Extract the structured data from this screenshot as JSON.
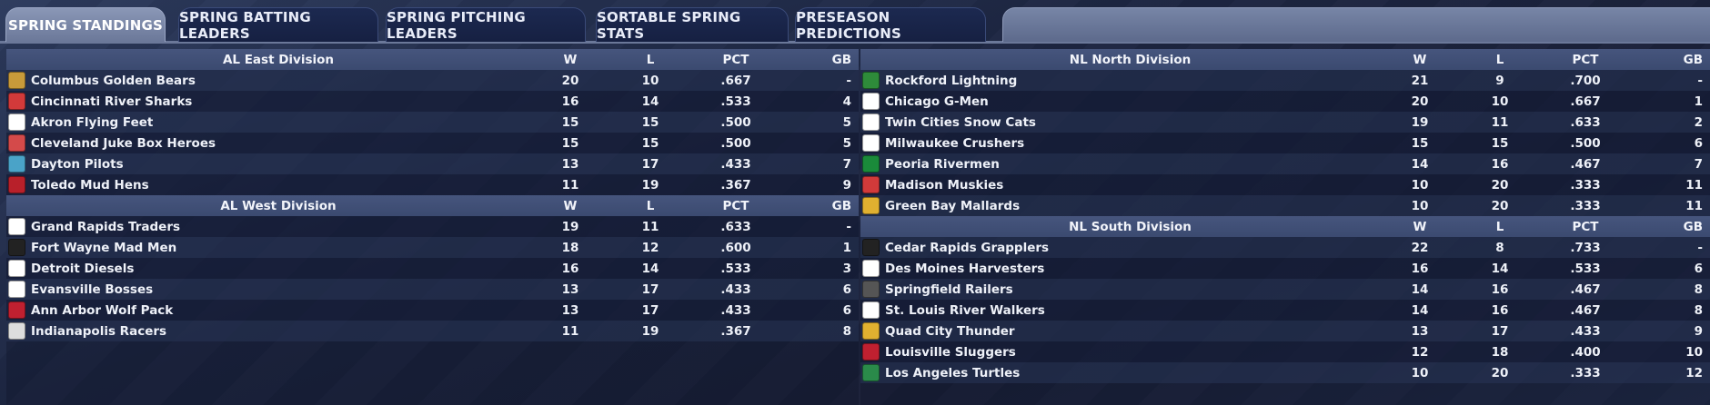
{
  "tabs": [
    {
      "label": "SPRING STANDINGS",
      "active": true
    },
    {
      "label": "SPRING BATTING LEADERS",
      "active": false
    },
    {
      "label": "SPRING PITCHING LEADERS",
      "active": false
    },
    {
      "label": "SORTABLE SPRING STATS",
      "active": false
    },
    {
      "label": "PRESEASON PREDICTIONS",
      "active": false
    }
  ],
  "columns": {
    "w": "W",
    "l": "L",
    "pct": "PCT",
    "gb": "GB"
  },
  "divisions": {
    "al_east": {
      "name": "AL East Division",
      "teams": [
        {
          "name": "Columbus Golden Bears",
          "w": "20",
          "l": "10",
          "pct": ".667",
          "gb": "-",
          "logo": "bear-logo-icon",
          "color": "#c89a3a"
        },
        {
          "name": "Cincinnati River Sharks",
          "w": "16",
          "l": "14",
          "pct": ".533",
          "gb": "4",
          "logo": "shark-logo-icon",
          "color": "#d23a3a"
        },
        {
          "name": "Akron  Flying Feet",
          "w": "15",
          "l": "15",
          "pct": ".500",
          "gb": "5",
          "logo": "feet-logo-icon",
          "color": "#ffffff"
        },
        {
          "name": "Cleveland Juke Box Heroes",
          "w": "15",
          "l": "15",
          "pct": ".500",
          "gb": "5",
          "logo": "jukebox-logo-icon",
          "color": "#d44a4a"
        },
        {
          "name": "Dayton Pilots",
          "w": "13",
          "l": "17",
          "pct": ".433",
          "gb": "7",
          "logo": "pilot-logo-icon",
          "color": "#4aa3c8"
        },
        {
          "name": "Toledo  Mud Hens",
          "w": "11",
          "l": "19",
          "pct": ".367",
          "gb": "9",
          "logo": "mudhen-logo-icon",
          "color": "#b8202a"
        }
      ]
    },
    "al_west": {
      "name": "AL West Division",
      "teams": [
        {
          "name": "Grand Rapids Traders",
          "w": "19",
          "l": "11",
          "pct": ".633",
          "gb": "-",
          "logo": "traders-logo-icon",
          "color": "#ffffff"
        },
        {
          "name": "Fort Wayne Mad Men",
          "w": "18",
          "l": "12",
          "pct": ".600",
          "gb": "1",
          "logo": "madmen-logo-icon",
          "color": "#222222"
        },
        {
          "name": "Detroit Diesels",
          "w": "16",
          "l": "14",
          "pct": ".533",
          "gb": "3",
          "logo": "diesels-logo-icon",
          "color": "#ffffff"
        },
        {
          "name": "Evansville Bosses",
          "w": "13",
          "l": "17",
          "pct": ".433",
          "gb": "6",
          "logo": "bosses-logo-icon",
          "color": "#ffffff"
        },
        {
          "name": "Ann Arbor Wolf Pack",
          "w": "13",
          "l": "17",
          "pct": ".433",
          "gb": "6",
          "logo": "wolfpack-logo-icon",
          "color": "#c02030"
        },
        {
          "name": "Indianapolis Racers",
          "w": "11",
          "l": "19",
          "pct": ".367",
          "gb": "8",
          "logo": "racers-logo-icon",
          "color": "#dddddd"
        }
      ]
    },
    "nl_north": {
      "name": "NL North Division",
      "teams": [
        {
          "name": "Rockford Lightning",
          "w": "21",
          "l": "9",
          "pct": ".700",
          "gb": "-",
          "logo": "lightning-logo-icon",
          "color": "#2e8b3a"
        },
        {
          "name": "Chicago G-Men",
          "w": "20",
          "l": "10",
          "pct": ".667",
          "gb": "1",
          "logo": "gmen-logo-icon",
          "color": "#ffffff"
        },
        {
          "name": "Twin Cities Snow Cats",
          "w": "19",
          "l": "11",
          "pct": ".633",
          "gb": "2",
          "logo": "snowcats-logo-icon",
          "color": "#ffffff"
        },
        {
          "name": "Milwaukee Crushers",
          "w": "15",
          "l": "15",
          "pct": ".500",
          "gb": "6",
          "logo": "crushers-logo-icon",
          "color": "#ffffff"
        },
        {
          "name": "Peoria Rivermen",
          "w": "14",
          "l": "16",
          "pct": ".467",
          "gb": "7",
          "logo": "rivermen-logo-icon",
          "color": "#1a8a3a"
        },
        {
          "name": "Madison Muskies",
          "w": "10",
          "l": "20",
          "pct": ".333",
          "gb": "11",
          "logo": "muskies-logo-icon",
          "color": "#d23a3a"
        },
        {
          "name": "Green Bay  Mallards",
          "w": "10",
          "l": "20",
          "pct": ".333",
          "gb": "11",
          "logo": "mallards-logo-icon",
          "color": "#e0b030"
        }
      ]
    },
    "nl_south": {
      "name": "NL South Division",
      "teams": [
        {
          "name": "Cedar Rapids Grapplers",
          "w": "22",
          "l": "8",
          "pct": ".733",
          "gb": "-",
          "logo": "grapplers-logo-icon",
          "color": "#222222"
        },
        {
          "name": "Des Moines Harvesters",
          "w": "16",
          "l": "14",
          "pct": ".533",
          "gb": "6",
          "logo": "harvesters-logo-icon",
          "color": "#ffffff"
        },
        {
          "name": "Springfield Railers",
          "w": "14",
          "l": "16",
          "pct": ".467",
          "gb": "8",
          "logo": "railers-logo-icon",
          "color": "#555555"
        },
        {
          "name": "St. Louis River Walkers",
          "w": "14",
          "l": "16",
          "pct": ".467",
          "gb": "8",
          "logo": "riverwalkers-logo-icon",
          "color": "#ffffff"
        },
        {
          "name": "Quad City Thunder",
          "w": "13",
          "l": "17",
          "pct": ".433",
          "gb": "9",
          "logo": "thunder-logo-icon",
          "color": "#e0b030"
        },
        {
          "name": "Louisville Sluggers",
          "w": "12",
          "l": "18",
          "pct": ".400",
          "gb": "10",
          "logo": "sluggers-logo-icon",
          "color": "#c02030"
        },
        {
          "name": "Los Angeles Turtles",
          "w": "10",
          "l": "20",
          "pct": ".333",
          "gb": "12",
          "logo": "turtles-logo-icon",
          "color": "#2a8a4a"
        }
      ]
    }
  }
}
